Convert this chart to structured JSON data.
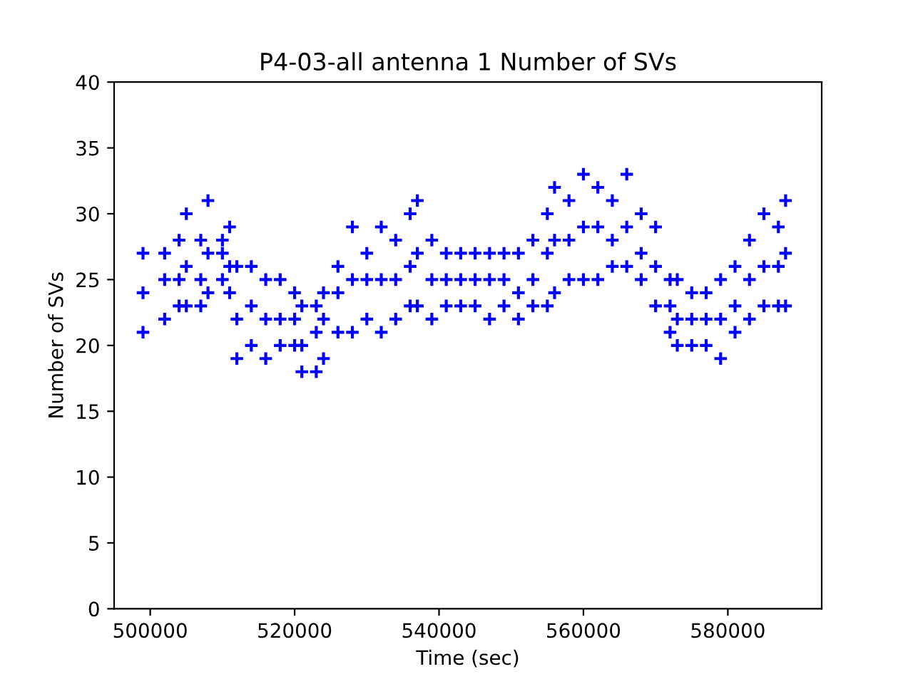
{
  "chart_data": {
    "type": "scatter",
    "title": "P4-03-all antenna 1 Number of SVs",
    "xlabel": "Time (sec)",
    "ylabel": "Number of SVs",
    "xlim": [
      495000,
      593000
    ],
    "xticks": [
      500000,
      520000,
      540000,
      560000,
      580000
    ],
    "ylim": [
      0,
      40
    ],
    "yticks": [
      0,
      5,
      10,
      15,
      20,
      25,
      30,
      35,
      40
    ],
    "marker": "cross",
    "grid": false,
    "series": [
      {
        "color": "#0000ff",
        "x": [
          499000,
          499000,
          499000,
          502000,
          502000,
          502000,
          504000,
          504000,
          504000,
          505000,
          505000,
          505000,
          507000,
          507000,
          507000,
          508000,
          508000,
          508000,
          510000,
          510000,
          510000,
          511000,
          511000,
          511000,
          512000,
          512000,
          512000,
          514000,
          514000,
          514000,
          516000,
          516000,
          516000,
          518000,
          518000,
          518000,
          520000,
          520000,
          520000,
          521000,
          521000,
          521000,
          523000,
          523000,
          523000,
          524000,
          524000,
          524000,
          526000,
          526000,
          526000,
          528000,
          528000,
          528000,
          530000,
          530000,
          530000,
          532000,
          532000,
          532000,
          534000,
          534000,
          534000,
          536000,
          536000,
          536000,
          537000,
          537000,
          537000,
          539000,
          539000,
          539000,
          541000,
          541000,
          541000,
          543000,
          543000,
          543000,
          545000,
          545000,
          545000,
          547000,
          547000,
          547000,
          549000,
          549000,
          549000,
          551000,
          551000,
          551000,
          553000,
          553000,
          553000,
          555000,
          555000,
          555000,
          556000,
          556000,
          556000,
          558000,
          558000,
          558000,
          560000,
          560000,
          560000,
          562000,
          562000,
          562000,
          564000,
          564000,
          564000,
          566000,
          566000,
          566000,
          568000,
          568000,
          568000,
          570000,
          570000,
          570000,
          572000,
          572000,
          572000,
          573000,
          573000,
          573000,
          575000,
          575000,
          575000,
          577000,
          577000,
          577000,
          579000,
          579000,
          579000,
          581000,
          581000,
          581000,
          583000,
          583000,
          583000,
          585000,
          585000,
          585000,
          587000,
          587000,
          587000,
          588000,
          588000,
          588000
        ],
        "values": [
          21,
          24,
          27,
          22,
          25,
          27,
          23,
          25,
          28,
          23,
          26,
          30,
          23,
          25,
          28,
          24,
          27,
          31,
          25,
          27,
          28,
          24,
          26,
          29,
          19,
          22,
          26,
          20,
          23,
          26,
          19,
          22,
          25,
          20,
          22,
          25,
          20,
          22,
          24,
          18,
          20,
          23,
          18,
          21,
          23,
          19,
          22,
          24,
          21,
          24,
          26,
          21,
          25,
          29,
          22,
          25,
          27,
          21,
          25,
          29,
          22,
          25,
          28,
          23,
          26,
          30,
          23,
          27,
          31,
          22,
          25,
          28,
          23,
          25,
          27,
          23,
          25,
          27,
          23,
          25,
          27,
          22,
          25,
          27,
          23,
          25,
          27,
          22,
          24,
          27,
          23,
          25,
          28,
          23,
          27,
          30,
          24,
          28,
          32,
          25,
          28,
          31,
          25,
          29,
          33,
          25,
          29,
          32,
          26,
          28,
          31,
          26,
          29,
          33,
          25,
          27,
          30,
          23,
          26,
          29,
          21,
          23,
          25,
          20,
          22,
          25,
          20,
          22,
          24,
          20,
          22,
          24,
          19,
          22,
          25,
          21,
          23,
          26,
          22,
          25,
          28,
          23,
          26,
          30,
          23,
          26,
          29,
          23,
          27,
          31
        ]
      }
    ]
  }
}
